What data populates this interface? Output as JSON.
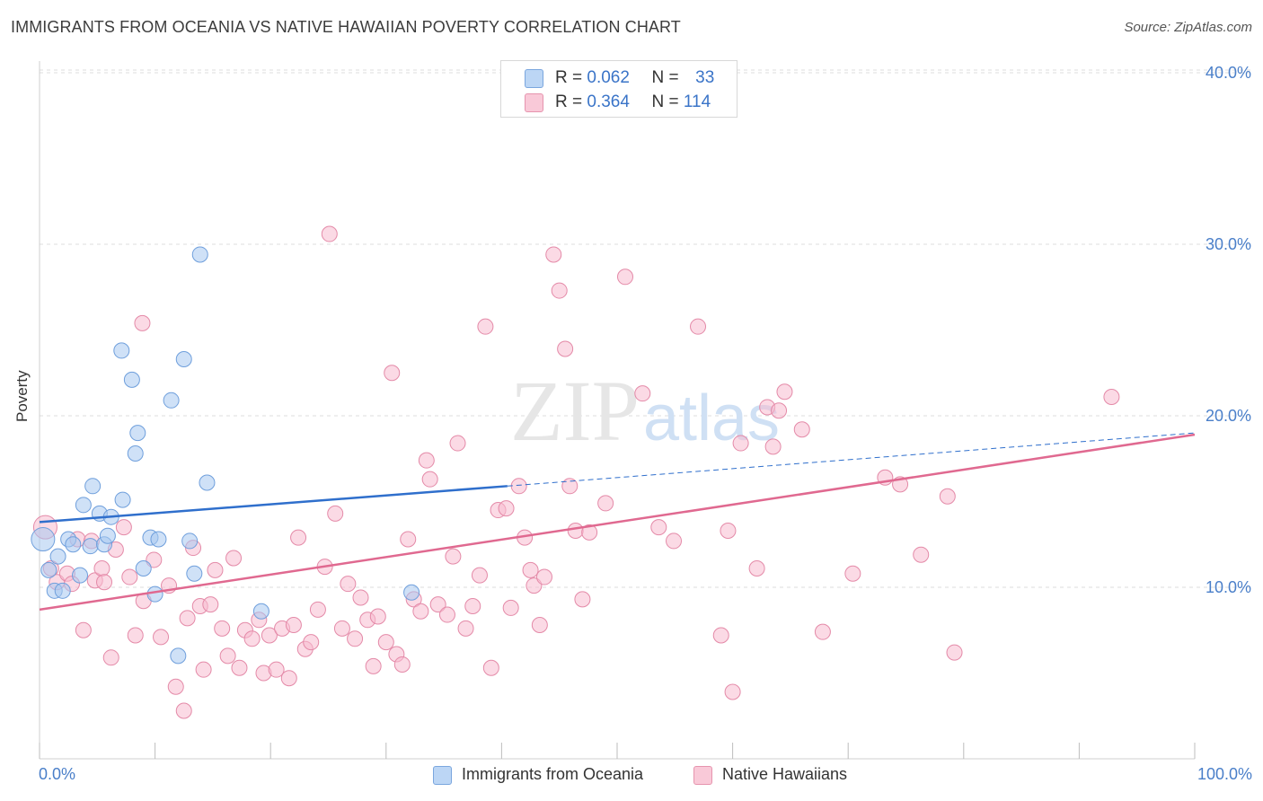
{
  "chart_data": {
    "type": "scatter",
    "title": "IMMIGRANTS FROM OCEANIA VS NATIVE HAWAIIAN POVERTY CORRELATION CHART",
    "source": "Source: ZipAtlas.com",
    "ylabel": "Poverty",
    "xlabel": "",
    "xlim": [
      0,
      100
    ],
    "ylim": [
      0,
      42
    ],
    "x_tick_labels": {
      "left": "0.0%",
      "right": "100.0%"
    },
    "y_ticks": [
      10,
      20,
      30,
      40
    ],
    "y_tick_labels": [
      "10.0%",
      "20.0%",
      "30.0%",
      "40.0%"
    ],
    "watermark": {
      "zip": "ZIP",
      "atlas": "atlas"
    },
    "legend": {
      "r_label": "R =",
      "n_label": "N =",
      "rows": [
        {
          "r": "0.062",
          "n": "33"
        },
        {
          "r": "0.364",
          "n": "114"
        }
      ]
    },
    "series": [
      {
        "name": "Immigrants from Oceania",
        "color": "#a8c8f0",
        "stroke": "#6f9fdc",
        "trend_color": "#2f6fcc",
        "trend": {
          "x0": 0,
          "y0": 13.8,
          "x1": 40.5,
          "y1": 15.9,
          "dash_to_x": 100,
          "dash_to_y": 19.0
        },
        "points": [
          [
            0.3,
            12.8
          ],
          [
            0.8,
            11.0
          ],
          [
            1.3,
            9.8
          ],
          [
            1.6,
            11.8
          ],
          [
            2.0,
            9.8
          ],
          [
            2.5,
            12.8
          ],
          [
            2.9,
            12.5
          ],
          [
            3.5,
            10.7
          ],
          [
            3.8,
            14.8
          ],
          [
            4.4,
            12.4
          ],
          [
            4.6,
            15.9
          ],
          [
            5.2,
            14.3
          ],
          [
            5.6,
            12.5
          ],
          [
            5.9,
            13.0
          ],
          [
            6.2,
            14.1
          ],
          [
            7.2,
            15.1
          ],
          [
            7.1,
            23.8
          ],
          [
            8.0,
            22.1
          ],
          [
            8.3,
            17.8
          ],
          [
            8.5,
            19.0
          ],
          [
            9.0,
            11.1
          ],
          [
            9.6,
            12.9
          ],
          [
            10.0,
            9.6
          ],
          [
            10.3,
            12.8
          ],
          [
            11.4,
            20.9
          ],
          [
            12.5,
            23.3
          ],
          [
            13.0,
            12.7
          ],
          [
            13.4,
            10.8
          ],
          [
            13.9,
            29.4
          ],
          [
            14.5,
            16.1
          ],
          [
            19.2,
            8.6
          ],
          [
            12.0,
            6.0
          ],
          [
            32.2,
            9.7
          ]
        ]
      },
      {
        "name": "Native Hawaiians",
        "color": "#f7bcd0",
        "stroke": "#e48aa8",
        "trend_color": "#e06990",
        "trend": {
          "x0": 0,
          "y0": 8.7,
          "x1": 100,
          "y1": 18.9
        },
        "points": [
          [
            0.5,
            13.5
          ],
          [
            1.0,
            11.1
          ],
          [
            1.5,
            10.3
          ],
          [
            2.4,
            10.8
          ],
          [
            2.8,
            10.2
          ],
          [
            3.3,
            12.8
          ],
          [
            3.8,
            7.5
          ],
          [
            4.5,
            12.7
          ],
          [
            4.8,
            10.4
          ],
          [
            5.4,
            11.1
          ],
          [
            5.6,
            10.3
          ],
          [
            6.2,
            5.9
          ],
          [
            6.6,
            12.2
          ],
          [
            7.3,
            13.5
          ],
          [
            7.8,
            10.6
          ],
          [
            8.3,
            7.2
          ],
          [
            8.9,
            25.4
          ],
          [
            9.0,
            9.2
          ],
          [
            9.9,
            11.6
          ],
          [
            10.5,
            7.1
          ],
          [
            11.2,
            10.1
          ],
          [
            11.8,
            4.2
          ],
          [
            12.5,
            2.8
          ],
          [
            12.8,
            8.2
          ],
          [
            13.3,
            12.3
          ],
          [
            13.9,
            8.9
          ],
          [
            14.2,
            5.2
          ],
          [
            14.8,
            9.0
          ],
          [
            15.2,
            11.0
          ],
          [
            15.8,
            7.6
          ],
          [
            16.3,
            6.0
          ],
          [
            16.8,
            11.7
          ],
          [
            17.3,
            5.3
          ],
          [
            17.8,
            7.5
          ],
          [
            18.4,
            7.0
          ],
          [
            19.0,
            8.1
          ],
          [
            19.4,
            5.0
          ],
          [
            19.9,
            7.2
          ],
          [
            20.5,
            5.2
          ],
          [
            21.0,
            7.6
          ],
          [
            21.6,
            4.7
          ],
          [
            22.0,
            7.8
          ],
          [
            22.4,
            12.9
          ],
          [
            23.0,
            6.4
          ],
          [
            23.5,
            6.8
          ],
          [
            24.1,
            8.7
          ],
          [
            24.7,
            11.2
          ],
          [
            25.1,
            30.6
          ],
          [
            25.6,
            14.3
          ],
          [
            26.2,
            7.6
          ],
          [
            26.7,
            10.2
          ],
          [
            27.3,
            7.0
          ],
          [
            27.8,
            9.4
          ],
          [
            28.4,
            8.1
          ],
          [
            28.9,
            5.4
          ],
          [
            29.3,
            8.3
          ],
          [
            30.0,
            6.8
          ],
          [
            30.5,
            22.5
          ],
          [
            30.9,
            6.1
          ],
          [
            31.4,
            5.5
          ],
          [
            31.9,
            12.8
          ],
          [
            32.4,
            9.3
          ],
          [
            33.0,
            8.6
          ],
          [
            33.5,
            17.4
          ],
          [
            33.8,
            16.3
          ],
          [
            34.5,
            9.0
          ],
          [
            35.3,
            8.4
          ],
          [
            35.8,
            11.8
          ],
          [
            36.2,
            18.4
          ],
          [
            36.9,
            7.6
          ],
          [
            37.5,
            8.9
          ],
          [
            38.1,
            10.7
          ],
          [
            38.6,
            25.2
          ],
          [
            39.1,
            5.3
          ],
          [
            39.7,
            14.5
          ],
          [
            40.4,
            14.6
          ],
          [
            40.8,
            8.8
          ],
          [
            41.5,
            15.9
          ],
          [
            42.0,
            12.9
          ],
          [
            42.5,
            11.0
          ],
          [
            42.8,
            10.1
          ],
          [
            43.3,
            7.8
          ],
          [
            43.7,
            10.6
          ],
          [
            44.5,
            29.4
          ],
          [
            45.0,
            27.3
          ],
          [
            45.5,
            23.9
          ],
          [
            45.9,
            15.9
          ],
          [
            46.4,
            13.3
          ],
          [
            47.0,
            9.3
          ],
          [
            47.6,
            13.2
          ],
          [
            49.0,
            14.9
          ],
          [
            50.7,
            28.1
          ],
          [
            52.2,
            21.3
          ],
          [
            53.6,
            13.5
          ],
          [
            54.9,
            12.7
          ],
          [
            57.0,
            25.2
          ],
          [
            59.0,
            7.2
          ],
          [
            59.6,
            13.3
          ],
          [
            60.0,
            3.9
          ],
          [
            60.7,
            18.4
          ],
          [
            62.1,
            11.1
          ],
          [
            63.0,
            20.5
          ],
          [
            63.5,
            18.2
          ],
          [
            64.0,
            20.3
          ],
          [
            64.5,
            21.4
          ],
          [
            66.0,
            19.2
          ],
          [
            67.8,
            7.4
          ],
          [
            70.4,
            10.8
          ],
          [
            73.2,
            16.4
          ],
          [
            76.3,
            11.9
          ],
          [
            78.6,
            15.3
          ],
          [
            79.2,
            6.2
          ],
          [
            92.8,
            21.1
          ],
          [
            74.5,
            16.0
          ]
        ]
      }
    ]
  }
}
